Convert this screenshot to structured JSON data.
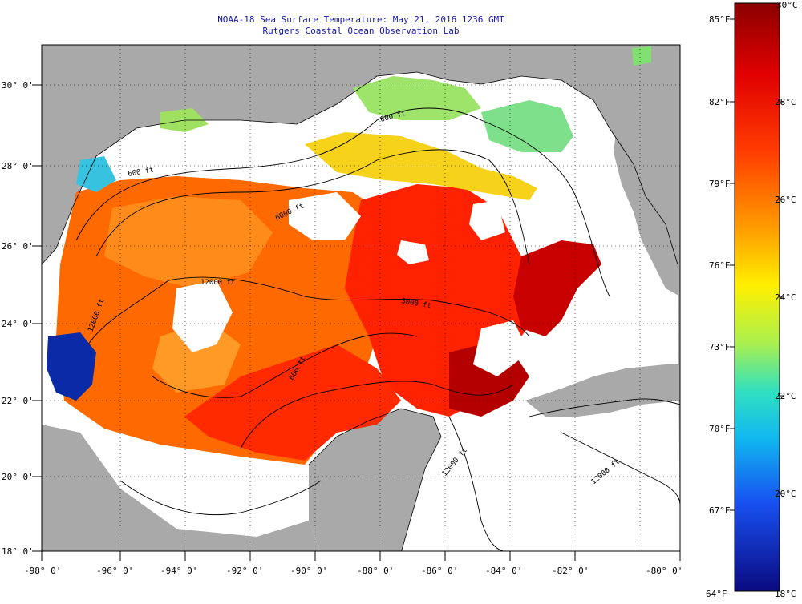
{
  "title": "NOAA-18 Sea Surface Temperature:  May 21, 2016 1236 GMT",
  "subtitle": "Rutgers Coastal Ocean Observation Lab",
  "lon_ticks": [
    "-98° 0'",
    "-96° 0'",
    "-94° 0'",
    "-92° 0'",
    "-90° 0'",
    "-88° 0'",
    "-86° 0'",
    "-84° 0'",
    "-82° 0'",
    "-80° 0'"
  ],
  "lat_ticks": [
    "30° 0'",
    "28° 0'",
    "26° 0'",
    "24° 0'",
    "22° 0'",
    "20° 0'",
    "18° 0'"
  ],
  "colorbar": {
    "f_labels": [
      "85°F",
      "82°F",
      "79°F",
      "76°F",
      "73°F",
      "70°F",
      "67°F",
      "64°F"
    ],
    "c_labels": [
      "30°C",
      "28°C",
      "26°C",
      "24°C",
      "22°C",
      "20°C",
      "18°C"
    ],
    "range_c": [
      18,
      30
    ]
  },
  "contour_labels": [
    "600 ft",
    "6000 ft",
    "12000 ft",
    "12000 ft",
    "3000 ft",
    "600 ft",
    "12000 ft",
    "12000 ft",
    "600 ft"
  ],
  "colors": {
    "land": "#a9a9a9",
    "cloud": "#ffffff",
    "title": "#1a1aa8"
  }
}
